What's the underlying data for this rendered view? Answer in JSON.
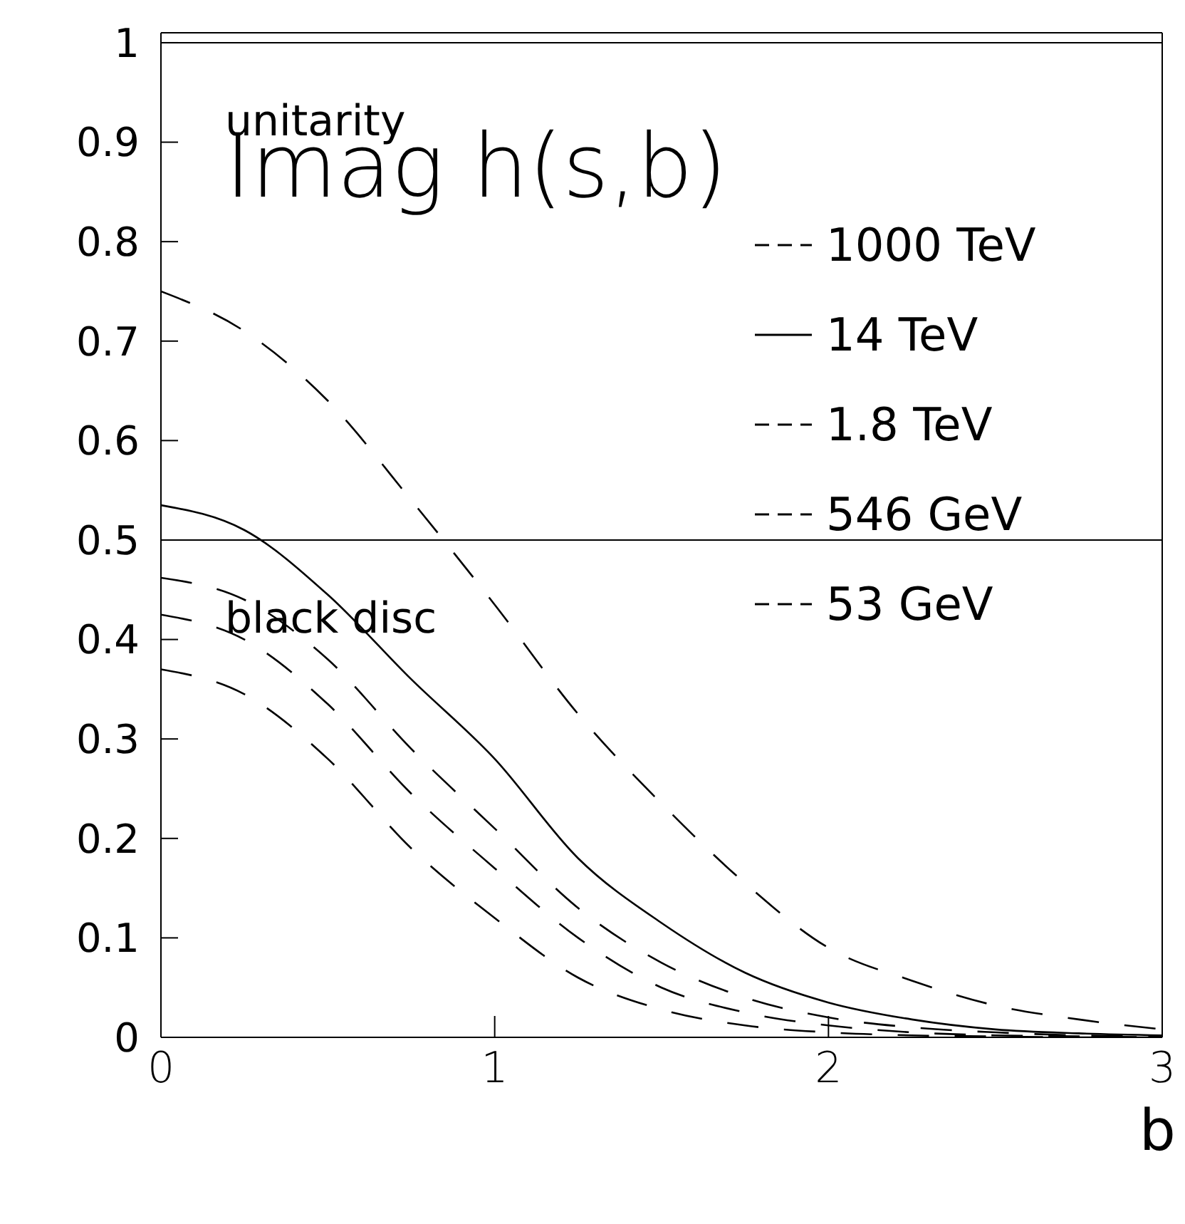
{
  "chart_data": {
    "type": "line",
    "ylabel": "Imag h(s,b)",
    "xlabel": "b",
    "x": [
      0,
      0.25,
      0.5,
      0.75,
      1,
      1.25,
      1.5,
      1.75,
      2,
      2.25,
      2.5,
      2.75,
      3
    ],
    "series": [
      {
        "name": "1000 TeV",
        "color": "#000000",
        "line_style": "dashed",
        "values": [
          0.75,
          0.71,
          0.64,
          0.54,
          0.435,
          0.325,
          0.235,
          0.155,
          0.09,
          0.057,
          0.032,
          0.018,
          0.008
        ]
      },
      {
        "name": "14 TeV",
        "color": "#000000",
        "line_style": "solid",
        "values": [
          0.535,
          0.51,
          0.445,
          0.36,
          0.28,
          0.18,
          0.115,
          0.065,
          0.035,
          0.018,
          0.008,
          0.004,
          0.002
        ]
      },
      {
        "name": "1.8 TeV",
        "color": "#000000",
        "line_style": "dashed",
        "values": [
          0.462,
          0.44,
          0.38,
          0.29,
          0.21,
          0.13,
          0.075,
          0.04,
          0.02,
          0.01,
          0.005,
          0.002,
          0.001
        ]
      },
      {
        "name": "546 GeV",
        "color": "#000000",
        "line_style": "dashed",
        "values": [
          0.425,
          0.4,
          0.335,
          0.245,
          0.17,
          0.1,
          0.05,
          0.025,
          0.012,
          0.005,
          0.002,
          0.001,
          0
        ]
      },
      {
        "name": "53 GeV",
        "color": "#000000",
        "line_style": "dashed",
        "values": [
          0.37,
          0.345,
          0.28,
          0.19,
          0.12,
          0.06,
          0.028,
          0.012,
          0.005,
          0.002,
          0.001,
          0,
          0
        ]
      }
    ],
    "xlim": [
      0,
      3
    ],
    "xticks": [
      0,
      1,
      2,
      3
    ],
    "ylim": [
      0,
      1.01
    ],
    "yticks": [
      0,
      0.1,
      0.2,
      0.3,
      0.4,
      0.5,
      0.6,
      0.7,
      0.8,
      0.9,
      1
    ],
    "ref_lines": [
      {
        "axis": "y",
        "value": 1,
        "label": "unitarity"
      },
      {
        "axis": "y",
        "value": 0.5,
        "label": "black disc"
      }
    ],
    "grid": false,
    "legend": "top right",
    "marker": "none"
  }
}
